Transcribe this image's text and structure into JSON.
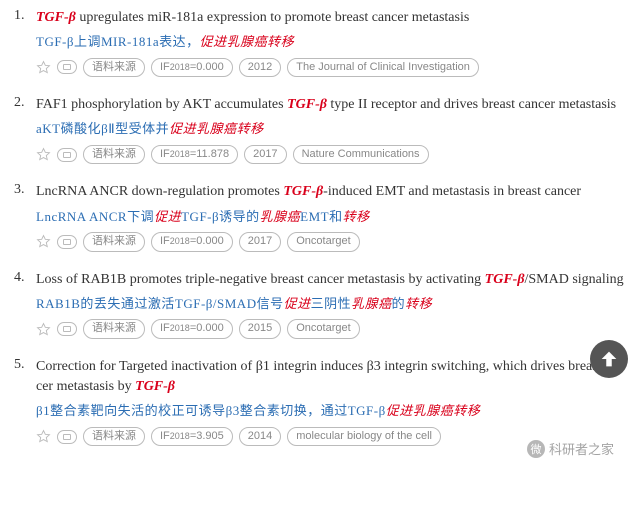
{
  "results": [
    {
      "title_en_segments": [
        {
          "t": "TGF-β",
          "hl": true
        },
        {
          "t": " upregulates miR-181a expression to promote breast cancer metastasis",
          "hl": false
        }
      ],
      "title_zh_segments": [
        {
          "t": "TGF-β上调MIR-181a表达，",
          "cls": "zh-blue"
        },
        {
          "t": "促进乳腺癌转移",
          "cls": "zh-red"
        }
      ],
      "meta": {
        "source_label": "语料来源",
        "if_label": "IF",
        "if_year": "2018",
        "if_value": "0.000",
        "year": "2012",
        "journal": "The Journal of Clinical Investigation"
      }
    },
    {
      "title_en_segments": [
        {
          "t": "FAF1 phosphorylation by AKT accumulates ",
          "hl": false
        },
        {
          "t": "TGF-β",
          "hl": true
        },
        {
          "t": " type II receptor and drives breast cancer metastasis",
          "hl": false
        }
      ],
      "title_zh_segments": [
        {
          "t": "aKT磷酸化βⅡ型受体并",
          "cls": "zh-blue"
        },
        {
          "t": "促进乳腺癌转移",
          "cls": "zh-red"
        }
      ],
      "meta": {
        "source_label": "语料来源",
        "if_label": "IF",
        "if_year": "2018",
        "if_value": "11.878",
        "year": "2017",
        "journal": "Nature Communications"
      }
    },
    {
      "title_en_segments": [
        {
          "t": "LncRNA ANCR down-regulation promotes ",
          "hl": false
        },
        {
          "t": "TGF-β",
          "hl": true
        },
        {
          "t": "-induced EMT and metastasis in breast cancer",
          "hl": false
        }
      ],
      "title_zh_segments": [
        {
          "t": "LncRNA ANCR下调",
          "cls": "zh-blue"
        },
        {
          "t": "促进",
          "cls": "zh-red"
        },
        {
          "t": "TGF-β诱导的",
          "cls": "zh-blue"
        },
        {
          "t": "乳腺癌",
          "cls": "zh-red"
        },
        {
          "t": "EMT和",
          "cls": "zh-blue"
        },
        {
          "t": "转移",
          "cls": "zh-red"
        }
      ],
      "meta": {
        "source_label": "语料来源",
        "if_label": "IF",
        "if_year": "2018",
        "if_value": "0.000",
        "year": "2017",
        "journal": "Oncotarget"
      }
    },
    {
      "title_en_segments": [
        {
          "t": "Loss of RAB1B promotes triple-negative breast cancer metastasis by activating ",
          "hl": false
        },
        {
          "t": "TGF-β",
          "hl": true
        },
        {
          "t": "/SMAD signaling",
          "hl": false
        }
      ],
      "title_zh_segments": [
        {
          "t": "RAB1B的丢失通过激活TGF-β/SMAD信号",
          "cls": "zh-blue"
        },
        {
          "t": "促进",
          "cls": "zh-red"
        },
        {
          "t": "三阴性",
          "cls": "zh-blue"
        },
        {
          "t": "乳腺癌",
          "cls": "zh-red"
        },
        {
          "t": "的",
          "cls": "zh-blue"
        },
        {
          "t": "转移",
          "cls": "zh-red"
        }
      ],
      "meta": {
        "source_label": "语料来源",
        "if_label": "IF",
        "if_year": "2018",
        "if_value": "0.000",
        "year": "2015",
        "journal": "Oncotarget"
      }
    },
    {
      "title_en_segments": [
        {
          "t": "Correction for Targeted inactivation of β1 integrin induces β3 integrin switching, which drives breast cancer metastasis by ",
          "hl": false
        },
        {
          "t": "TGF-β",
          "hl": true
        }
      ],
      "title_zh_segments": [
        {
          "t": "β1整合素靶向失活的校正可诱导β3整合素切换，通过TGF-β",
          "cls": "zh-blue"
        },
        {
          "t": "促进乳腺癌转移",
          "cls": "zh-red"
        }
      ],
      "meta": {
        "source_label": "语料来源",
        "if_label": "IF",
        "if_year": "2018",
        "if_value": "3.905",
        "year": "2014",
        "journal": "molecular biology of the cell"
      }
    }
  ],
  "watermark": {
    "text": "科研者之家",
    "icon_letter": "微"
  }
}
